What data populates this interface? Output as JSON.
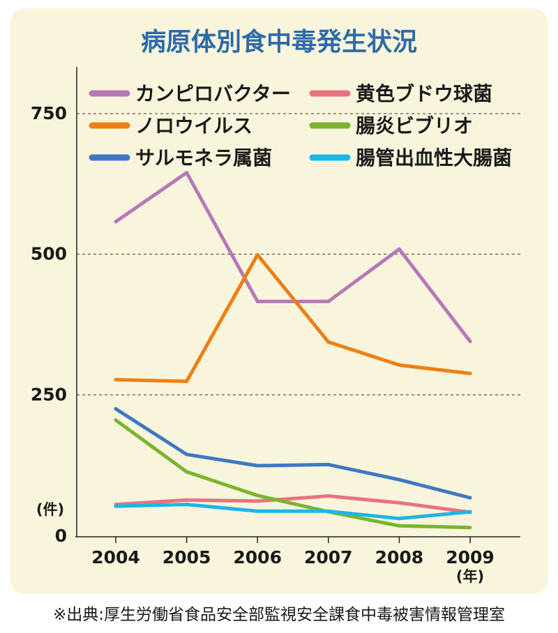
{
  "source_note": "※出典:厚生労働省食品安全部監視安全課食中毒被害情報管理室",
  "chart_data": {
    "type": "line",
    "title": "病原体別食中毒発生状況",
    "x": [
      "2004",
      "2005",
      "2006",
      "2007",
      "2008",
      "2009"
    ],
    "xlabel": "(年)",
    "ylabel": "(件)",
    "ylim": [
      0,
      850
    ],
    "yticks": [
      "0",
      "250",
      "500",
      "750"
    ],
    "grid": "dashed horizontal at 250, 500, 750",
    "legend_placement": "top, two columns",
    "series": [
      {
        "name": "カンピロバクター",
        "color": "#b678b8",
        "values": [
          558,
          645,
          416,
          416,
          509,
          345
        ]
      },
      {
        "name": "黄色ブドウ球菌",
        "color": "#e8737f",
        "values": [
          55,
          63,
          61,
          70,
          58,
          41
        ]
      },
      {
        "name": "ノロウイルス",
        "color": "#ee7f13",
        "values": [
          277,
          274,
          499,
          344,
          303,
          288
        ]
      },
      {
        "name": "腸炎ビブリオ",
        "color": "#79b52f",
        "values": [
          205,
          113,
          71,
          42,
          17,
          14
        ]
      },
      {
        "name": "サルモネラ属菌",
        "color": "#3e78c4",
        "values": [
          225,
          144,
          124,
          126,
          99,
          67
        ]
      },
      {
        "name": "腸管出血性大腸菌",
        "color": "#1cb6e6",
        "values": [
          52,
          55,
          43,
          43,
          30,
          42
        ]
      }
    ]
  }
}
